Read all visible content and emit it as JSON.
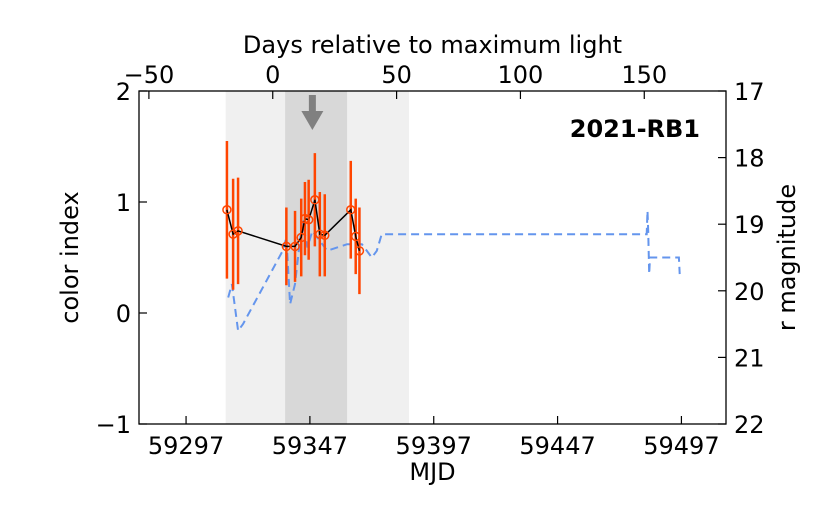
{
  "chart_data": {
    "type": "scatter",
    "title": "",
    "annotation": "2021-RB1",
    "xlabel": "MJD",
    "ylabel": "color index",
    "y2label": "r magnitude",
    "top_xlabel": "Days relative to maximum light",
    "xlim": [
      59278,
      59515
    ],
    "ylim": [
      -1,
      2
    ],
    "y2lim": [
      22,
      17
    ],
    "top_xlim": [
      -54,
      183
    ],
    "x_ticks": [
      {
        "value": 59297,
        "label": "59297"
      },
      {
        "value": 59347,
        "label": "59347"
      },
      {
        "value": 59397,
        "label": "59397"
      },
      {
        "value": 59447,
        "label": "59447"
      },
      {
        "value": 59497,
        "label": "59497"
      }
    ],
    "y_ticks": [
      {
        "value": 2,
        "label": "2"
      },
      {
        "value": 1,
        "label": "1"
      },
      {
        "value": 0,
        "label": "0"
      },
      {
        "value": -1,
        "label": "−1"
      }
    ],
    "y2_ticks": [
      {
        "value": 17,
        "label": "17"
      },
      {
        "value": 18,
        "label": "18"
      },
      {
        "value": 19,
        "label": "19"
      },
      {
        "value": 20,
        "label": "20"
      },
      {
        "value": 21,
        "label": "21"
      },
      {
        "value": 22,
        "label": "22"
      }
    ],
    "top_ticks": [
      {
        "value": -50,
        "label": "−50"
      },
      {
        "value": 0,
        "label": "0"
      },
      {
        "value": 50,
        "label": "50"
      },
      {
        "value": 100,
        "label": "100"
      },
      {
        "value": 150,
        "label": "150"
      }
    ],
    "light_band": [
      59313,
      59387
    ],
    "dark_band": [
      59337,
      59362
    ],
    "max_light_arrow_x": 59348,
    "grid": false,
    "colors": {
      "color_points": "#ff4500",
      "color_line": "#000000",
      "magnitude_line": "#6495ed",
      "light_band": "#f0f0f0",
      "dark_band": "#d8d8d8",
      "arrow": "#808080"
    },
    "color_index_series": {
      "x": [
        59313.5,
        59316,
        59318,
        59337.5,
        59341,
        59343.5,
        59345,
        59346.5,
        59349,
        59351,
        59353,
        59363.5,
        59365.5,
        59367
      ],
      "y": [
        0.93,
        0.71,
        0.74,
        0.6,
        0.6,
        0.68,
        0.85,
        0.84,
        1.02,
        0.71,
        0.7,
        0.93,
        0.69,
        0.56
      ],
      "yerr": [
        0.62,
        0.5,
        0.48,
        0.35,
        0.32,
        0.35,
        0.33,
        0.36,
        0.42,
        0.38,
        0.37,
        0.44,
        0.34,
        0.39
      ]
    },
    "r_magnitude_series": {
      "x": [
        59314,
        59315.5,
        59318,
        59320,
        59336,
        59337.5,
        59339,
        59341,
        59342.5,
        59344,
        59346,
        59348,
        59350,
        59352,
        59354,
        59362,
        59365,
        59368,
        59372,
        59374,
        59376,
        59483,
        59483.3,
        59483.6,
        59484,
        59484.3,
        59496,
        59496.3
      ],
      "y": [
        20.1,
        19.9,
        20.6,
        20.5,
        19.4,
        19.2,
        20.2,
        19.9,
        19.4,
        18.95,
        19.35,
        19.1,
        19.2,
        19.3,
        19.4,
        19.3,
        19.3,
        19.3,
        19.5,
        19.4,
        19.15,
        19.15,
        18.8,
        19.1,
        19.75,
        19.5,
        19.5,
        19.75
      ]
    }
  }
}
